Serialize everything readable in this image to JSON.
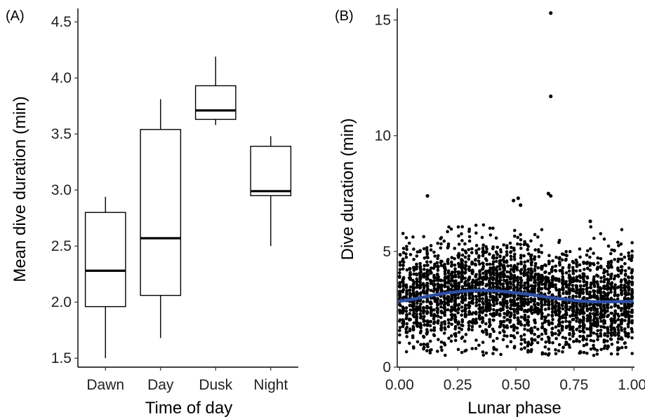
{
  "chart_data": [
    {
      "panel_label": "(A)",
      "type": "box",
      "xlabel": "Time of day",
      "ylabel": "Mean dive duration (min)",
      "categories": [
        "Dawn",
        "Day",
        "Dusk",
        "Night"
      ],
      "boxes": [
        {
          "category": "Dawn",
          "whisker_low": 1.5,
          "q1": 1.96,
          "median": 2.28,
          "q3": 2.8,
          "whisker_high": 2.94
        },
        {
          "category": "Day",
          "whisker_low": 1.68,
          "q1": 2.06,
          "median": 2.57,
          "q3": 3.54,
          "whisker_high": 3.81
        },
        {
          "category": "Dusk",
          "whisker_low": 3.58,
          "q1": 3.63,
          "median": 3.71,
          "q3": 3.93,
          "whisker_high": 4.19
        },
        {
          "category": "Night",
          "whisker_low": 2.5,
          "q1": 2.95,
          "median": 2.99,
          "q3": 3.39,
          "whisker_high": 3.48
        }
      ],
      "ylim": [
        1.42,
        4.62
      ],
      "yticks": [
        1.5,
        2.0,
        2.5,
        3.0,
        3.5,
        4.0,
        4.5
      ],
      "ytick_labels": [
        "1.5",
        "2.0",
        "2.5",
        "3.0",
        "3.5",
        "4.0",
        "4.5"
      ],
      "grid": false
    },
    {
      "panel_label": "(B)",
      "type": "scatter",
      "xlabel": "Lunar phase",
      "ylabel": "Dive duration (min)",
      "xlim": [
        -0.01,
        1.01
      ],
      "ylim": [
        0,
        15.5
      ],
      "xticks": [
        0.0,
        0.25,
        0.5,
        0.75,
        1.0
      ],
      "xtick_labels": [
        "0.00",
        "0.25",
        "0.50",
        "0.75",
        "1.00"
      ],
      "yticks": [
        0,
        5,
        10,
        15
      ],
      "ytick_labels": [
        "0",
        "5",
        "10",
        "15"
      ],
      "point_color": "#000000",
      "point_count": 3000,
      "smooth_line": {
        "color": "#2e4fa3",
        "x": [
          0.0,
          0.05,
          0.1,
          0.15,
          0.2,
          0.25,
          0.3,
          0.35,
          0.4,
          0.45,
          0.5,
          0.55,
          0.6,
          0.65,
          0.7,
          0.75,
          0.8,
          0.85,
          0.9,
          0.95,
          1.0
        ],
        "y": [
          2.85,
          2.92,
          3.02,
          3.12,
          3.2,
          3.26,
          3.3,
          3.32,
          3.31,
          3.27,
          3.21,
          3.15,
          3.08,
          3.0,
          2.94,
          2.88,
          2.84,
          2.82,
          2.82,
          2.83,
          2.84
        ]
      },
      "outliers": [
        {
          "x": 0.65,
          "y": 15.3
        },
        {
          "x": 0.65,
          "y": 11.7
        },
        {
          "x": 0.64,
          "y": 7.5
        },
        {
          "x": 0.65,
          "y": 7.4
        },
        {
          "x": 0.12,
          "y": 7.4
        },
        {
          "x": 0.49,
          "y": 7.2
        },
        {
          "x": 0.51,
          "y": 7.3
        },
        {
          "x": 0.52,
          "y": 7.0
        },
        {
          "x": 0.82,
          "y": 6.3
        }
      ],
      "grid": false
    }
  ]
}
